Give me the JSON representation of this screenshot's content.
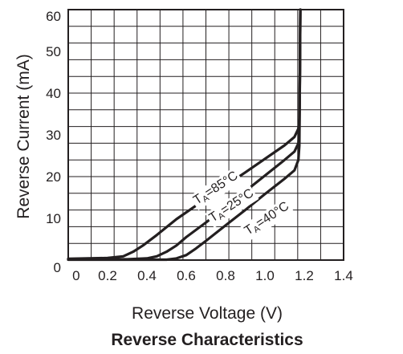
{
  "chart_data": {
    "type": "line",
    "title": "Reverse Characteristics",
    "xlabel": "Reverse Voltage (V)",
    "ylabel": "Reverse Current (mA)",
    "xlim": [
      0,
      1.4
    ],
    "ylim": [
      0,
      60
    ],
    "x_ticks": [
      "0",
      "0.2",
      "0.4",
      "0.6",
      "0.8",
      "1.0",
      "1.2",
      "1.4"
    ],
    "y_ticks": [
      "0",
      "10",
      "20",
      "30",
      "40",
      "50",
      "60"
    ],
    "grid": true,
    "series": [
      {
        "name": "TA=85°C",
        "label_main": "T",
        "label_sub": "A",
        "label_rest": "=85°C",
        "color": "#231f20",
        "x": [
          0.0,
          0.2,
          0.28,
          0.33,
          0.38,
          0.45,
          0.55,
          0.7,
          0.9,
          1.1,
          1.15,
          1.17,
          1.175,
          1.178,
          1.18
        ],
        "y": [
          0.3,
          0.5,
          0.9,
          2.0,
          3.5,
          6.0,
          9.8,
          14.7,
          21.0,
          27.5,
          29.5,
          31.5,
          34.0,
          45.0,
          60.0
        ]
      },
      {
        "name": "TA=25°C",
        "label_main": "T",
        "label_sub": "A",
        "label_rest": "=25°C",
        "color": "#231f20",
        "x": [
          0.0,
          0.3,
          0.4,
          0.45,
          0.5,
          0.55,
          0.6,
          0.7,
          0.9,
          1.1,
          1.15,
          1.17,
          1.175,
          1.178,
          1.18
        ],
        "y": [
          0.2,
          0.2,
          0.4,
          0.9,
          2.0,
          3.5,
          5.5,
          9.0,
          16.5,
          24.0,
          26.0,
          28.0,
          31.0,
          45.0,
          60.0
        ]
      },
      {
        "name": "TA=40°C",
        "label_main": "T",
        "label_sub": "A",
        "label_rest": "=40°C",
        "color": "#231f20",
        "x": [
          0.0,
          0.5,
          0.55,
          0.6,
          0.65,
          0.7,
          0.8,
          0.9,
          1.0,
          1.1,
          1.15,
          1.17,
          1.175,
          1.178,
          1.18
        ],
        "y": [
          0.1,
          0.1,
          0.4,
          1.2,
          2.8,
          4.6,
          8.3,
          12.0,
          15.8,
          19.5,
          21.5,
          24.0,
          27.5,
          45.0,
          60.0
        ]
      }
    ]
  }
}
